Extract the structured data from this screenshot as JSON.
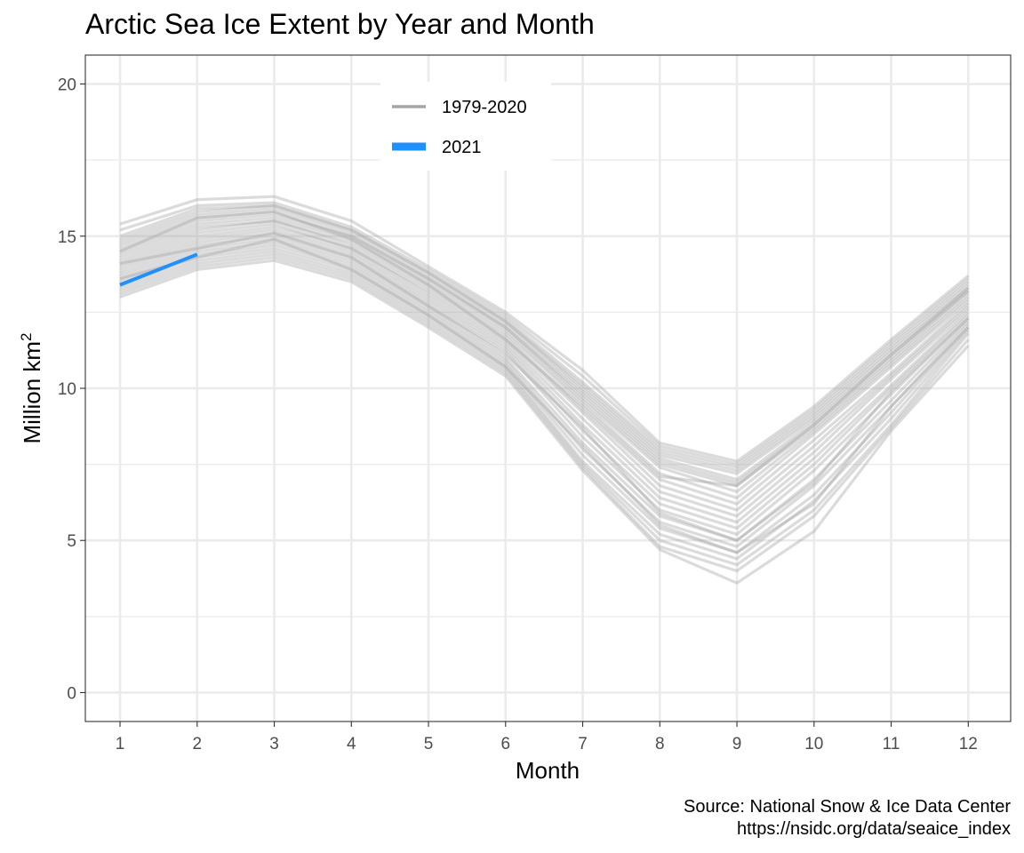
{
  "chart_data": {
    "type": "line",
    "title": "Arctic Sea Ice Extent by Year and Month",
    "xlabel": "Month",
    "ylabel_main": "Million km",
    "ylabel_sup": "2",
    "x": [
      1,
      2,
      3,
      4,
      5,
      6,
      7,
      8,
      9,
      10,
      11,
      12
    ],
    "x_ticks": [
      "1",
      "2",
      "3",
      "4",
      "5",
      "6",
      "7",
      "8",
      "9",
      "10",
      "11",
      "12"
    ],
    "y_ticks": [
      "0",
      "5",
      "10",
      "15",
      "20"
    ],
    "xlim": [
      0.55,
      12.55
    ],
    "ylim": [
      -0.95,
      20.95
    ],
    "grid": true,
    "legend_placement": "top-center inside plot",
    "legend": [
      {
        "label": "1979-2020",
        "color": "#a6a6a6"
      },
      {
        "label": "2021",
        "color": "#1e90ff"
      }
    ],
    "historical_color": "#a6a6a6",
    "highlight_color": "#1e90ff",
    "historical_series": [
      [
        15.4,
        16.2,
        16.3,
        15.5,
        14.0,
        12.5,
        10.6,
        8.2,
        7.6,
        9.4,
        11.6,
        13.7
      ],
      [
        15.2,
        16.0,
        16.1,
        15.3,
        13.9,
        12.4,
        10.4,
        8.1,
        7.5,
        9.3,
        11.5,
        13.6
      ],
      [
        15.0,
        15.9,
        16.0,
        15.2,
        13.8,
        12.3,
        10.2,
        8.0,
        7.4,
        9.2,
        11.4,
        13.5
      ],
      [
        14.9,
        15.8,
        16.0,
        15.2,
        13.8,
        12.2,
        10.1,
        7.9,
        7.3,
        9.1,
        11.3,
        13.4
      ],
      [
        14.8,
        15.7,
        15.9,
        15.1,
        13.7,
        12.2,
        10.0,
        7.8,
        7.2,
        9.0,
        11.2,
        13.3
      ],
      [
        14.7,
        15.6,
        15.8,
        15.0,
        13.6,
        12.1,
        9.9,
        7.7,
        7.0,
        8.9,
        11.1,
        13.2
      ],
      [
        14.6,
        15.5,
        15.7,
        15.0,
        13.6,
        12.0,
        9.8,
        7.6,
        6.9,
        8.8,
        11.0,
        13.2
      ],
      [
        14.5,
        15.4,
        15.6,
        14.9,
        13.5,
        12.0,
        9.7,
        7.5,
        6.8,
        8.7,
        10.9,
        13.1
      ],
      [
        14.4,
        15.3,
        15.5,
        14.8,
        13.4,
        11.9,
        9.6,
        7.4,
        6.6,
        8.6,
        10.8,
        13.0
      ],
      [
        14.3,
        15.2,
        15.5,
        14.7,
        13.3,
        11.8,
        9.5,
        7.2,
        6.4,
        8.5,
        10.7,
        12.9
      ],
      [
        14.2,
        15.1,
        15.4,
        14.6,
        13.2,
        11.7,
        9.3,
        7.0,
        6.2,
        8.3,
        10.5,
        12.8
      ],
      [
        14.1,
        15.0,
        15.3,
        14.6,
        13.1,
        11.6,
        9.2,
        6.8,
        6.0,
        8.1,
        10.4,
        12.7
      ],
      [
        14.0,
        14.9,
        15.2,
        14.5,
        13.0,
        11.5,
        9.0,
        6.6,
        5.8,
        7.9,
        10.3,
        12.6
      ],
      [
        13.9,
        14.8,
        15.1,
        14.4,
        12.9,
        11.4,
        8.8,
        6.4,
        5.6,
        7.7,
        10.1,
        12.5
      ],
      [
        13.8,
        14.7,
        15.0,
        14.3,
        12.8,
        11.3,
        8.6,
        6.2,
        5.4,
        7.5,
        10.0,
        12.4
      ],
      [
        13.7,
        14.6,
        14.9,
        14.2,
        12.7,
        11.2,
        8.4,
        6.0,
        5.2,
        7.3,
        9.8,
        12.3
      ],
      [
        13.6,
        14.5,
        14.8,
        14.1,
        12.6,
        11.0,
        8.2,
        5.8,
        5.0,
        7.0,
        9.6,
        12.2
      ],
      [
        13.5,
        14.4,
        14.7,
        14.0,
        12.5,
        10.9,
        8.0,
        5.6,
        4.8,
        6.8,
        9.4,
        12.1
      ],
      [
        13.4,
        14.3,
        14.6,
        13.9,
        12.4,
        10.8,
        7.8,
        5.4,
        4.6,
        6.5,
        9.2,
        12.0
      ],
      [
        13.3,
        14.2,
        14.5,
        13.8,
        12.3,
        10.7,
        7.6,
        5.2,
        4.4,
        6.3,
        9.0,
        11.9
      ],
      [
        13.2,
        14.1,
        14.4,
        13.7,
        12.2,
        10.6,
        7.5,
        5.0,
        4.2,
        6.0,
        8.8,
        11.8
      ],
      [
        13.1,
        14.0,
        14.3,
        13.6,
        12.1,
        10.5,
        7.4,
        4.8,
        4.0,
        5.8,
        8.7,
        11.6
      ],
      [
        13.0,
        13.9,
        14.2,
        13.5,
        12.0,
        10.4,
        7.3,
        4.7,
        3.6,
        5.3,
        8.6,
        11.4
      ],
      [
        14.5,
        15.6,
        15.8,
        14.9,
        13.4,
        11.6,
        9.4,
        7.1,
        6.8,
        8.8,
        11.1,
        13.3
      ],
      [
        14.1,
        14.6,
        15.1,
        14.3,
        12.7,
        11.1,
        8.7,
        5.9,
        5.0,
        6.9,
        9.9,
        12.3
      ],
      [
        13.6,
        14.3,
        14.9,
        13.9,
        12.4,
        10.7,
        8.1,
        5.5,
        4.6,
        6.2,
        9.4,
        12.0
      ]
    ],
    "highlight_series": {
      "name": "2021",
      "x": [
        1,
        2
      ],
      "values": [
        13.4,
        14.4
      ]
    },
    "caption_line1": "Source: National Snow & Ice Data Center",
    "caption_line2": "https://nsidc.org/data/seaice_index"
  }
}
